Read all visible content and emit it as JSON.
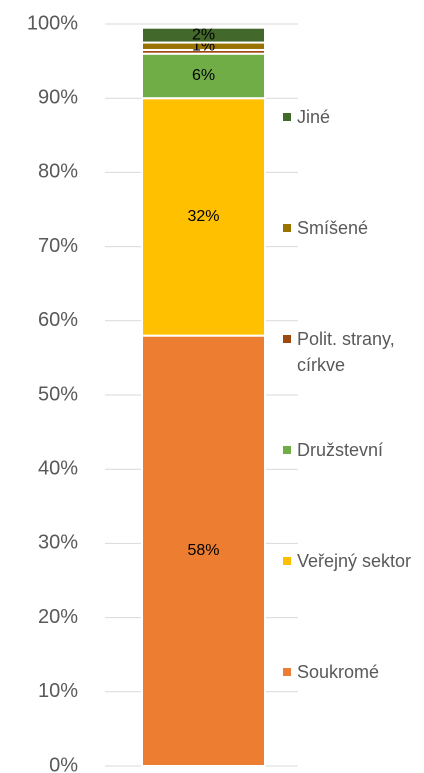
{
  "chart_data": {
    "type": "stacked_bar",
    "categories": [
      null
    ],
    "series": [
      {
        "name": "Soukromé",
        "color": "#ed7d31",
        "values": [
          58
        ],
        "value_labels": [
          "58%"
        ]
      },
      {
        "name": "Veřejný sektor",
        "color": "#ffc000",
        "values": [
          32
        ],
        "value_labels": [
          "32%"
        ]
      },
      {
        "name": "Družstevní",
        "color": "#70ad47",
        "values": [
          6
        ],
        "value_labels": [
          "6%"
        ]
      },
      {
        "name": "Polit. strany, církve",
        "color": "#9e480e",
        "values": [
          0.5
        ],
        "value_labels": [
          null
        ]
      },
      {
        "name": "Smíšené",
        "color": "#997300",
        "values": [
          1
        ],
        "value_labels": [
          "1%"
        ]
      },
      {
        "name": "Jiné",
        "color": "#43682b",
        "values": [
          2
        ],
        "value_labels": [
          "2%"
        ]
      }
    ],
    "ylim": [
      0,
      100
    ],
    "yticks": [
      {
        "value": 0,
        "label": "0%"
      },
      {
        "value": 10,
        "label": "10%"
      },
      {
        "value": 20,
        "label": "20%"
      },
      {
        "value": 30,
        "label": "30%"
      },
      {
        "value": 40,
        "label": "40%"
      },
      {
        "value": 50,
        "label": "50%"
      },
      {
        "value": 60,
        "label": "60%"
      },
      {
        "value": 70,
        "label": "70%"
      },
      {
        "value": 80,
        "label": "80%"
      },
      {
        "value": 90,
        "label": "90%"
      },
      {
        "value": 100,
        "label": "100%"
      }
    ],
    "grid": true,
    "legend": "right"
  }
}
